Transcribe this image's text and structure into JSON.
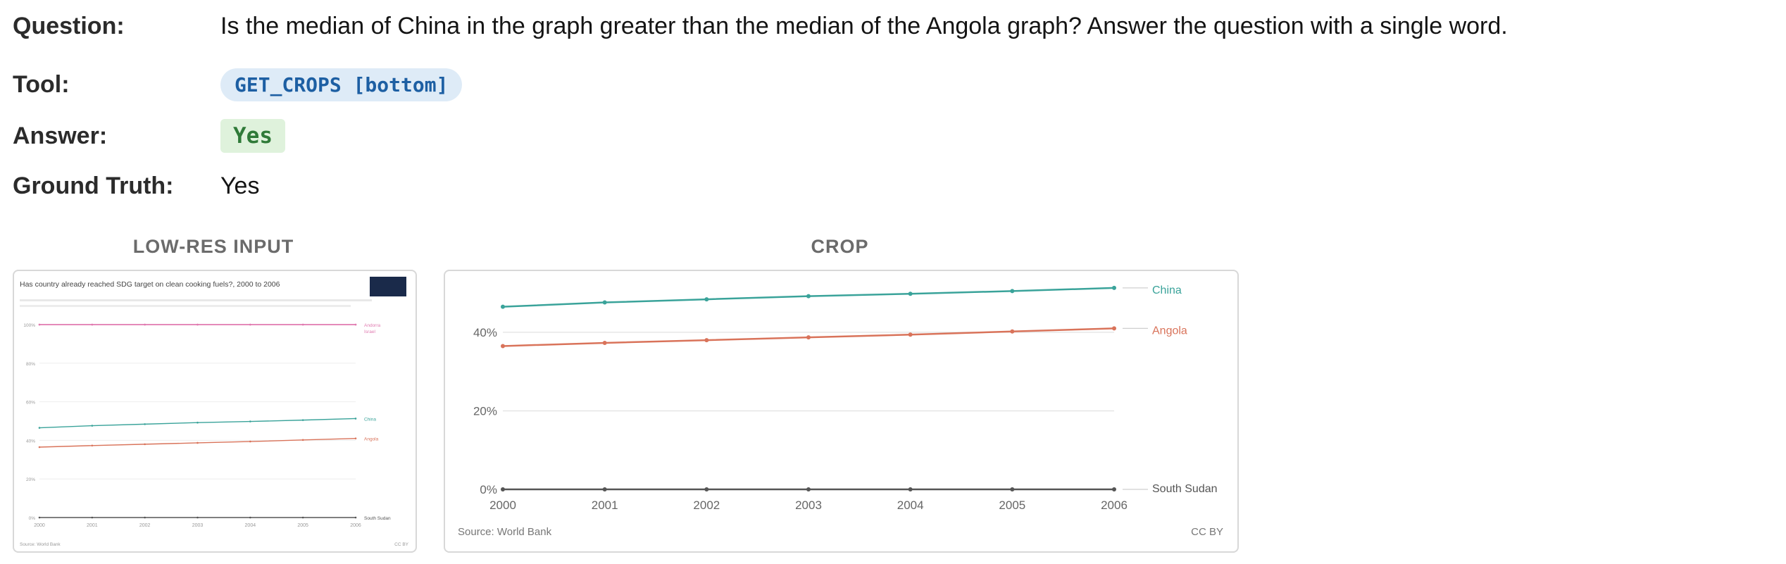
{
  "qa": {
    "question_label": "Question:",
    "question": "Is the median of China in the graph greater than the median of the Angola graph? Answer the question with a single word.",
    "tool_label": "Tool:",
    "tool": "GET_CROPS [bottom]",
    "answer_label": "Answer:",
    "answer": "Yes",
    "ground_truth_label": "Ground Truth:",
    "ground_truth": "Yes"
  },
  "panels": {
    "lowres_title": "LOW-RES INPUT",
    "crop_title": "CROP"
  },
  "colors": {
    "china": "#3aa39a",
    "angola": "#d9735a",
    "south_sudan": "#555555",
    "andorra": "#e07ab0",
    "tool_pill_bg": "#deebf7",
    "answer_pill_bg": "#dff2dc"
  },
  "chart_data": [
    {
      "type": "line",
      "title": "Has country already reached SDG target on clean cooking fuels?, 2000 to 2006",
      "x": [
        2000,
        2001,
        2002,
        2003,
        2004,
        2005,
        2006
      ],
      "ylim": [
        0,
        100
      ],
      "y_ticks": [
        "0%",
        "20%",
        "40%",
        "60%",
        "80%",
        "100%"
      ],
      "series": [
        {
          "name": "Andorra",
          "values": [
            100,
            100,
            100,
            100,
            100,
            100,
            100
          ]
        },
        {
          "name": "Israel",
          "values": [
            100,
            100,
            100,
            100,
            100,
            100,
            100
          ]
        },
        {
          "name": "China",
          "values": [
            46.5,
            47.6,
            48.4,
            49.2,
            49.8,
            50.5,
            51.3
          ]
        },
        {
          "name": "Angola",
          "values": [
            36.5,
            37.3,
            38.0,
            38.7,
            39.4,
            40.2,
            41.0
          ]
        },
        {
          "name": "South Sudan",
          "values": [
            0,
            0,
            0,
            0,
            0,
            0,
            0
          ]
        }
      ],
      "source": "Source: World Bank",
      "license": "CC BY"
    },
    {
      "type": "line",
      "x": [
        2000,
        2001,
        2002,
        2003,
        2004,
        2005,
        2006
      ],
      "x_ticks": [
        "2000",
        "2001",
        "2002",
        "2003",
        "2004",
        "2005",
        "2006"
      ],
      "ylim": [
        0,
        52
      ],
      "y_ticks": [
        "0%",
        "20%",
        "40%"
      ],
      "y_tick_values": [
        0,
        20,
        40
      ],
      "series": [
        {
          "name": "China",
          "values": [
            46.5,
            47.6,
            48.4,
            49.2,
            49.8,
            50.5,
            51.3
          ]
        },
        {
          "name": "Angola",
          "values": [
            36.5,
            37.3,
            38.0,
            38.7,
            39.4,
            40.2,
            41.0
          ]
        },
        {
          "name": "South Sudan",
          "values": [
            0,
            0,
            0,
            0,
            0,
            0,
            0
          ]
        }
      ],
      "source": "Source: World Bank",
      "license": "CC BY"
    }
  ]
}
